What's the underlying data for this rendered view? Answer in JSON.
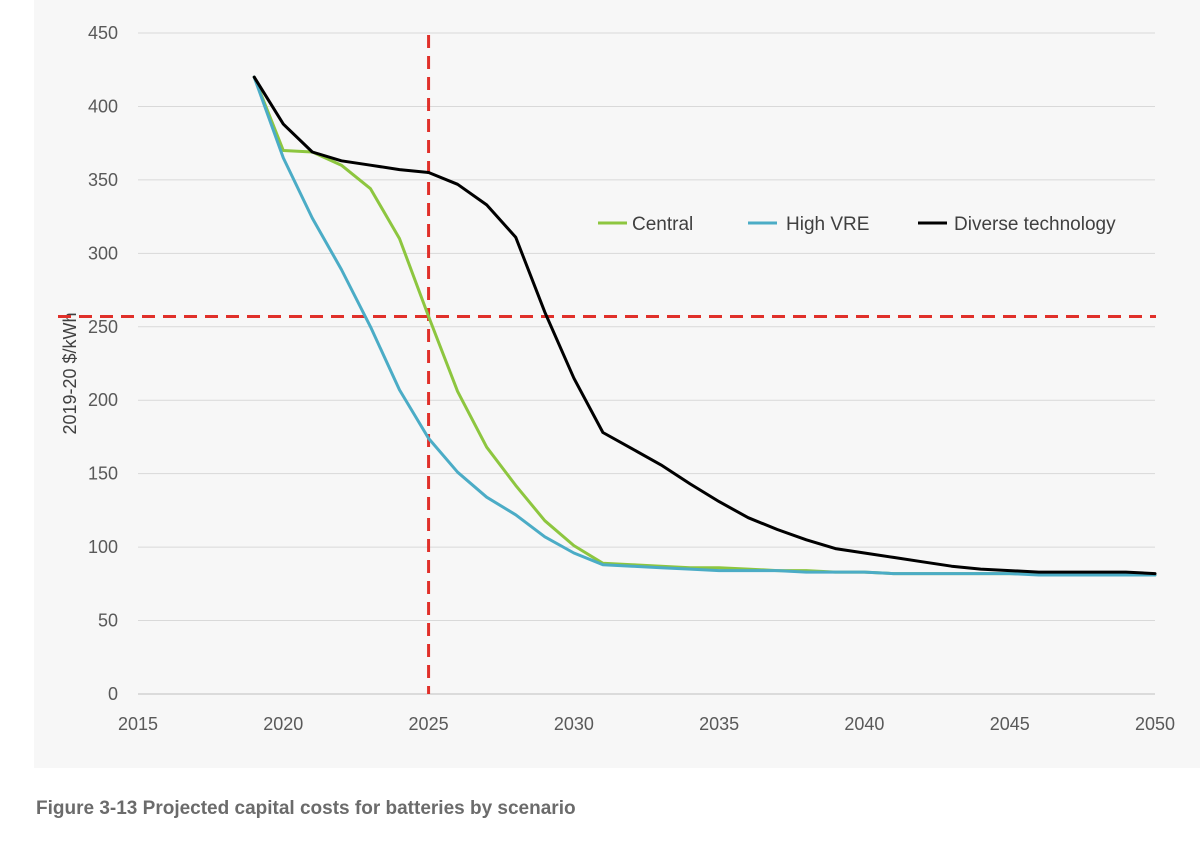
{
  "caption": "Figure 3-13 Projected capital costs for batteries by scenario",
  "chart_data": {
    "type": "line",
    "title": "",
    "xlabel": "",
    "ylabel": "2019-20 $/kWh",
    "xlim": [
      2015,
      2050
    ],
    "ylim": [
      0,
      450
    ],
    "x_ticks": [
      "2015",
      "2020",
      "2025",
      "2030",
      "2035",
      "2040",
      "2045",
      "2050"
    ],
    "x_tick_values": [
      2015,
      2020,
      2025,
      2030,
      2035,
      2040,
      2045,
      2050
    ],
    "y_ticks": [
      "0",
      "50",
      "100",
      "150",
      "200",
      "250",
      "300",
      "350",
      "400",
      "450"
    ],
    "y_tick_values": [
      0,
      50,
      100,
      150,
      200,
      250,
      300,
      350,
      400,
      450
    ],
    "grid": "horizontal",
    "legend_position": "top-right",
    "x": [
      2019,
      2020,
      2021,
      2022,
      2023,
      2024,
      2025,
      2026,
      2027,
      2028,
      2029,
      2030,
      2031,
      2032,
      2033,
      2034,
      2035,
      2036,
      2037,
      2038,
      2039,
      2040,
      2041,
      2042,
      2043,
      2044,
      2045,
      2046,
      2047,
      2048,
      2049,
      2050
    ],
    "series": [
      {
        "name": "Central",
        "color": "#8dc63f",
        "values": [
          420,
          370,
          369,
          360,
          344,
          310,
          257,
          206,
          168,
          142,
          118,
          101,
          89,
          88,
          87,
          86,
          86,
          85,
          84,
          84,
          83,
          83,
          82,
          82,
          82,
          82,
          82,
          82,
          81,
          81,
          81,
          81
        ]
      },
      {
        "name": "High VRE",
        "color": "#4bacc6",
        "values": [
          420,
          365,
          324,
          289,
          250,
          207,
          174,
          151,
          134,
          122,
          107,
          96,
          88,
          87,
          86,
          85,
          84,
          84,
          84,
          83,
          83,
          83,
          82,
          82,
          82,
          82,
          82,
          81,
          81,
          81,
          81,
          81
        ]
      },
      {
        "name": "Diverse technology",
        "color": "#000000",
        "values": [
          420,
          388,
          369,
          363,
          360,
          357,
          355,
          347,
          333,
          311,
          260,
          215,
          178,
          167,
          156,
          143,
          131,
          120,
          112,
          105,
          99,
          96,
          93,
          90,
          87,
          85,
          84,
          83,
          83,
          83,
          83,
          82
        ]
      }
    ],
    "reference_lines": [
      {
        "orientation": "vertical",
        "value": 2025,
        "color": "#e0302a",
        "style": "dashed"
      },
      {
        "orientation": "horizontal",
        "value": 257,
        "color": "#e0302a",
        "style": "dashed"
      }
    ]
  }
}
